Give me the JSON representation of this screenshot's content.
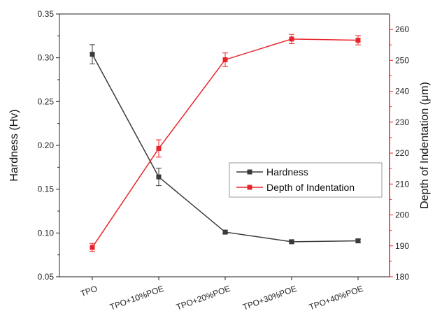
{
  "chart_data": {
    "type": "line",
    "categories": [
      "TPO",
      "TPO+10%POE",
      "TPO+20%POE",
      "TPO+30%POE",
      "TPO+40%POE"
    ],
    "series": [
      {
        "name": "Hardness",
        "axis": "left",
        "color": "#3a3a3a",
        "marker": "square",
        "values": [
          0.304,
          0.164,
          0.101,
          0.09,
          0.091
        ],
        "errors": [
          0.011,
          0.01,
          0.002,
          0.002,
          0.002
        ]
      },
      {
        "name": "Depth of Indentation",
        "axis": "right",
        "color": "#e8242b",
        "marker": "square",
        "values": [
          189.5,
          221.5,
          250.2,
          256.9,
          256.5
        ],
        "errors": [
          1.3,
          2.8,
          2.2,
          1.5,
          1.5
        ]
      }
    ],
    "ylabel": "Hardness (Hv)",
    "y2label": "Depth of Indentation (μm)",
    "ylim": [
      0.05,
      0.35
    ],
    "y2lim": [
      180,
      265
    ],
    "yticks": [
      "0.05",
      "0.10",
      "0.15",
      "0.20",
      "0.25",
      "0.30",
      "0.35"
    ],
    "y2ticks": [
      "180",
      "190",
      "200",
      "210",
      "220",
      "230",
      "240",
      "250",
      "260"
    ],
    "grid": false,
    "legend_position": "center-right",
    "y2_color": "#e8242b"
  }
}
